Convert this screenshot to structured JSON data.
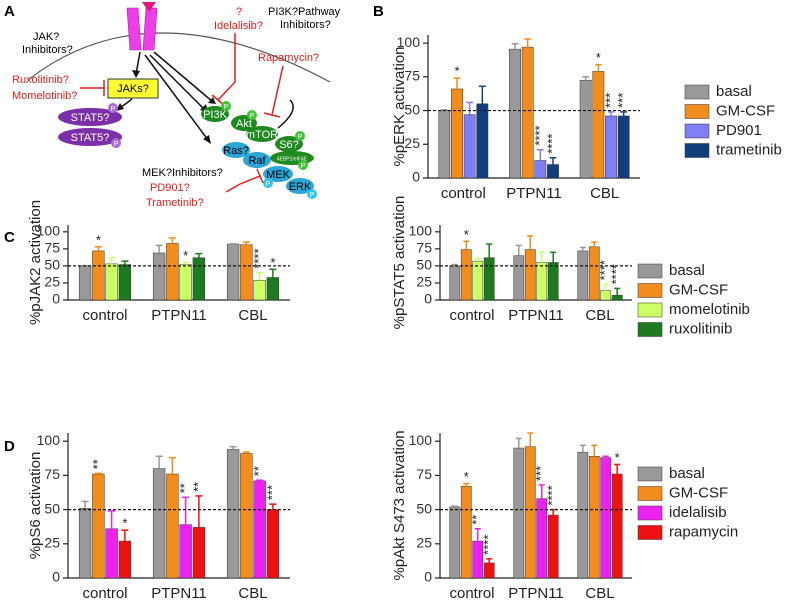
{
  "panel_labels": [
    "A",
    "B",
    "C",
    "D"
  ],
  "diagram": {
    "jak_inhibitors": [
      "JAK?",
      "Inhibitors?"
    ],
    "jak_drugs": [
      "Ruxolitinib?",
      "Momelotinib?"
    ],
    "jaks": "JAKs?",
    "stat5": [
      "STAT5?",
      "STAT5?"
    ],
    "pi3k_drugs": [
      "?",
      "Idelalisib?"
    ],
    "pi3k_inhibitors": [
      "PI3K?Pathway",
      "Inhibitors?"
    ],
    "mtor_drug": "Rapamycin?",
    "pi3k_nodes": [
      "PI3K",
      "Akt",
      "mTOR",
      "S6?",
      "4EBP1/eIF4E"
    ],
    "mapk_nodes": [
      "Ras?",
      "Raf",
      "MEK",
      "ERK"
    ],
    "mek_inhibitors": "MEK?Inhibitors?",
    "mek_drugs": [
      "PD901?",
      "Trametinib?"
    ],
    "phospho": "P"
  },
  "chart_data": [
    {
      "type": "bar",
      "y_label": "%pERK activation",
      "categories": [
        "control",
        "PTPN11",
        "CBL"
      ],
      "ylim": [
        0,
        106
      ],
      "yticks": [
        0,
        25,
        50,
        75,
        100
      ],
      "ref_line": 50,
      "legend": true,
      "series": [
        {
          "name": "basal",
          "color": "#999999",
          "values": [
            50,
            95.5,
            72.5
          ],
          "errors": [
            0.5,
            4,
            2.5
          ],
          "annotations": [
            null,
            null,
            null
          ]
        },
        {
          "name": "GM-CSF",
          "color": "#f28c1c",
          "values": [
            66,
            97,
            79
          ],
          "errors": [
            8,
            6,
            5
          ],
          "annotations": [
            "*",
            null,
            "*"
          ]
        },
        {
          "name": "PD901",
          "color": "#7f7ff5",
          "values": [
            47,
            13,
            46
          ],
          "errors": [
            9,
            8,
            3
          ],
          "annotations": [
            null,
            "****",
            "***"
          ]
        },
        {
          "name": "trametinib",
          "color": "#123f7c",
          "values": [
            55,
            10,
            46
          ],
          "errors": [
            13,
            5,
            3
          ],
          "annotations": [
            null,
            "****",
            "***"
          ]
        }
      ]
    },
    {
      "type": "bar",
      "y_label": "%pJAK2 activation",
      "categories": [
        "control",
        "PTPN11",
        "CBL"
      ],
      "ylim": [
        0,
        110
      ],
      "yticks": [
        0,
        25,
        50,
        75,
        100
      ],
      "ref_line": 50,
      "legend": false,
      "series": [
        {
          "color": "#999999",
          "values": [
            50,
            69,
            82
          ],
          "errors": [
            0.5,
            11,
            0.5
          ],
          "annotations": [
            null,
            null,
            null
          ]
        },
        {
          "color": "#f28c1c",
          "values": [
            72,
            83,
            81
          ],
          "errors": [
            6,
            8,
            4
          ],
          "annotations": [
            "*",
            null,
            null
          ]
        },
        {
          "color": "#ccff66",
          "values": [
            53,
            52,
            29
          ],
          "errors": [
            9,
            3,
            11
          ],
          "annotations": [
            null,
            "*",
            "****"
          ]
        },
        {
          "color": "#1e7a1e",
          "values": [
            52,
            62,
            33
          ],
          "errors": [
            5,
            6,
            12
          ],
          "annotations": [
            null,
            null,
            "*"
          ]
        }
      ]
    },
    {
      "type": "bar",
      "y_label": "%pSTAT5 activation",
      "categories": [
        "control",
        "PTPN11",
        "CBL"
      ],
      "ylim": [
        0,
        110
      ],
      "yticks": [
        0,
        25,
        50,
        75,
        100
      ],
      "ref_line": 50,
      "legend": true,
      "series": [
        {
          "name": "basal",
          "color": "#999999",
          "values": [
            50,
            65,
            72
          ],
          "errors": [
            2,
            15,
            5
          ],
          "annotations": [
            null,
            null,
            null
          ]
        },
        {
          "name": "GM-CSF",
          "color": "#f28c1c",
          "values": [
            74,
            74,
            78
          ],
          "errors": [
            12,
            20,
            7
          ],
          "annotations": [
            "*",
            null,
            null
          ]
        },
        {
          "name": "momelotinib",
          "color": "#ccff66",
          "values": [
            57,
            55,
            14
          ],
          "errors": [
            4,
            15,
            9
          ],
          "annotations": [
            null,
            null,
            "****"
          ]
        },
        {
          "name": "ruxolitinib",
          "color": "#1e7a1e",
          "values": [
            62,
            55,
            7
          ],
          "errors": [
            20,
            15,
            10
          ],
          "annotations": [
            null,
            null,
            "****"
          ]
        }
      ]
    },
    {
      "type": "bar",
      "y_label": "%pS6 activation",
      "categories": [
        "control",
        "PTPN11",
        "CBL"
      ],
      "ylim": [
        0,
        106
      ],
      "yticks": [
        0,
        25,
        50,
        75,
        100
      ],
      "ref_line": 50,
      "legend": false,
      "series": [
        {
          "color": "#999999",
          "values": [
            51,
            80,
            94
          ],
          "errors": [
            5,
            9,
            2
          ],
          "annotations": [
            null,
            null,
            null
          ]
        },
        {
          "color": "#f28c1c",
          "values": [
            76,
            76,
            91
          ],
          "errors": [
            0.5,
            12,
            1
          ],
          "annotations": [
            "**",
            null,
            null
          ]
        },
        {
          "color": "#ee22ee",
          "values": [
            36,
            39,
            71
          ],
          "errors": [
            13,
            20,
            0.5
          ],
          "annotations": [
            null,
            "**",
            "**"
          ]
        },
        {
          "color": "#ee1111",
          "values": [
            27,
            37,
            50
          ],
          "errors": [
            8,
            23,
            4
          ],
          "annotations": [
            "*",
            "**",
            "***"
          ]
        }
      ]
    },
    {
      "type": "bar",
      "y_label": "%pAkt S473 activation",
      "categories": [
        "control",
        "PTPN11",
        "CBL"
      ],
      "ylim": [
        0,
        106
      ],
      "yticks": [
        0,
        25,
        50,
        75,
        100
      ],
      "ref_line": 50,
      "legend": true,
      "series": [
        {
          "name": "basal",
          "color": "#999999",
          "values": [
            52,
            95,
            92
          ],
          "errors": [
            0.5,
            7,
            5
          ],
          "annotations": [
            null,
            null,
            null
          ]
        },
        {
          "name": "GM-CSF",
          "color": "#f28c1c",
          "values": [
            67,
            96,
            89
          ],
          "errors": [
            2,
            10,
            8
          ],
          "annotations": [
            "*",
            null,
            null
          ]
        },
        {
          "name": "idelalisib",
          "color": "#ee22ee",
          "values": [
            27,
            58,
            88
          ],
          "errors": [
            9,
            10,
            1
          ],
          "annotations": [
            "**",
            "***",
            null
          ]
        },
        {
          "name": "rapamycin",
          "color": "#ee1111",
          "values": [
            11,
            46,
            76
          ],
          "errors": [
            3,
            4,
            7
          ],
          "annotations": [
            "****",
            "****",
            "*"
          ]
        }
      ]
    }
  ]
}
